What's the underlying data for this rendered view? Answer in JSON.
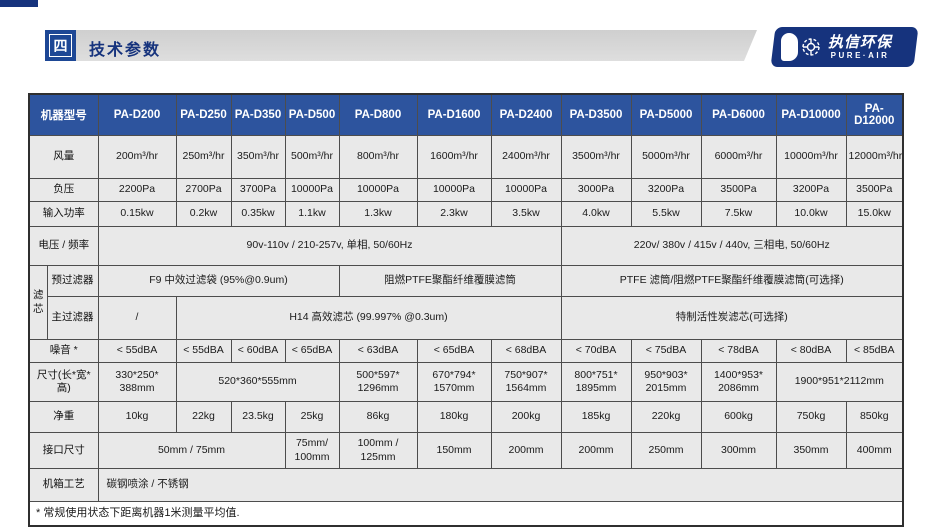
{
  "page": {
    "section_number": "四",
    "section_title": "技术参数",
    "logo": {
      "cn": "执信环保",
      "en": "PURE·AIR",
      "icon": "fan-icon"
    }
  },
  "colors": {
    "brand_navy": "#16337d",
    "section_box_blue": "#1d4795",
    "table_header_blue": "#2d549e",
    "cell_gray": "#e9e9e9",
    "bar_gray": "#d6d6d6"
  },
  "table": {
    "rows": [
      {
        "name": "row-model",
        "header": true,
        "cells": [
          {
            "t": "机器型号",
            "cs": 2
          },
          {
            "t": "PA-D200"
          },
          {
            "t": "PA-D250"
          },
          {
            "t": "PA-D350"
          },
          {
            "t": "PA-D500"
          },
          {
            "t": "PA-D800"
          },
          {
            "t": "PA-D1600"
          },
          {
            "t": "PA-D2400"
          },
          {
            "t": "PA-D3500"
          },
          {
            "t": "PA-D5000"
          },
          {
            "t": "PA-D6000"
          },
          {
            "t": "PA-D10000"
          },
          {
            "t": "PA-D12000"
          }
        ]
      },
      {
        "name": "row-airflow",
        "cells": [
          {
            "t": "风量",
            "cs": 2,
            "lbl": true
          },
          {
            "t": "200m³/hr"
          },
          {
            "t": "250m³/hr"
          },
          {
            "t": "350m³/hr"
          },
          {
            "t": "500m³/hr"
          },
          {
            "t": "800m³/hr"
          },
          {
            "t": "1600m³/hr"
          },
          {
            "t": "2400m³/hr"
          },
          {
            "t": "3500m³/hr"
          },
          {
            "t": "5000m³/hr"
          },
          {
            "t": "6000m³/hr"
          },
          {
            "t": "10000m³/hr"
          },
          {
            "t": "12000m³/hr"
          }
        ]
      },
      {
        "name": "row-negative-pressure",
        "cells": [
          {
            "t": "负压",
            "cs": 2,
            "lbl": true
          },
          {
            "t": "2200Pa"
          },
          {
            "t": "2700Pa"
          },
          {
            "t": "3700Pa"
          },
          {
            "t": "10000Pa"
          },
          {
            "t": "10000Pa"
          },
          {
            "t": "10000Pa"
          },
          {
            "t": "10000Pa"
          },
          {
            "t": "3000Pa"
          },
          {
            "t": "3200Pa"
          },
          {
            "t": "3500Pa"
          },
          {
            "t": "3200Pa"
          },
          {
            "t": "3500Pa"
          }
        ]
      },
      {
        "name": "row-input-power",
        "cells": [
          {
            "t": "输入功率",
            "cs": 2,
            "lbl": true
          },
          {
            "t": "0.15kw"
          },
          {
            "t": "0.2kw"
          },
          {
            "t": "0.35kw"
          },
          {
            "t": "1.1kw"
          },
          {
            "t": "1.3kw"
          },
          {
            "t": "2.3kw"
          },
          {
            "t": "3.5kw"
          },
          {
            "t": "4.0kw"
          },
          {
            "t": "5.5kw"
          },
          {
            "t": "7.5kw"
          },
          {
            "t": "10.0kw"
          },
          {
            "t": "15.0kw"
          }
        ]
      },
      {
        "name": "row-voltage-frequency",
        "cells": [
          {
            "t": "电压 / 频率",
            "cs": 2,
            "lbl": true
          },
          {
            "t": "90v-110v / 210-257v, 单相, 50/60Hz",
            "cs": 7
          },
          {
            "t": "220v/ 380v / 415v / 440v, 三相电, 50/60Hz",
            "cs": 5
          }
        ]
      },
      {
        "name": "row-pre-filter",
        "cells": [
          {
            "t": "滤芯",
            "rs": 2,
            "lbl": true
          },
          {
            "t": "预过滤器",
            "lbl": true
          },
          {
            "t": "F9 中效过滤袋 (95%@0.9um)",
            "cs": 4
          },
          {
            "t": "阻燃PTFE聚酯纤维覆膜滤筒",
            "cs": 3
          },
          {
            "t": "PTFE 滤筒/阻燃PTFE聚酯纤维覆膜滤筒(可选择)",
            "cs": 5
          }
        ]
      },
      {
        "name": "row-main-filter",
        "cells": [
          {
            "t": "主过滤器",
            "lbl": true
          },
          {
            "t": "/"
          },
          {
            "t": "H14 高效滤芯 (99.997% @0.3um)",
            "cs": 6
          },
          {
            "t": "特制活性炭滤芯(可选择)",
            "cs": 5
          }
        ]
      },
      {
        "name": "row-noise",
        "cells": [
          {
            "t": "噪音 *",
            "cs": 2,
            "lbl": true
          },
          {
            "t": "< 55dBA"
          },
          {
            "t": "< 55dBA"
          },
          {
            "t": "< 60dBA"
          },
          {
            "t": "< 65dBA"
          },
          {
            "t": "< 63dBA"
          },
          {
            "t": "< 65dBA"
          },
          {
            "t": "< 68dBA"
          },
          {
            "t": "< 70dBA"
          },
          {
            "t": "< 75dBA"
          },
          {
            "t": "< 78dBA"
          },
          {
            "t": "< 80dBA"
          },
          {
            "t": "< 85dBA"
          }
        ]
      },
      {
        "name": "row-dimensions",
        "cells": [
          {
            "t": "尺寸(长*宽*高)",
            "cs": 2,
            "lbl": true
          },
          {
            "t": "330*250*\n388mm"
          },
          {
            "t": "520*360*555mm",
            "cs": 3
          },
          {
            "t": "500*597*\n1296mm"
          },
          {
            "t": "670*794*\n1570mm"
          },
          {
            "t": "750*907*\n1564mm"
          },
          {
            "t": "800*751*\n1895mm"
          },
          {
            "t": "950*903*\n2015mm"
          },
          {
            "t": "1400*953*\n2086mm"
          },
          {
            "t": "1900*951*2112mm",
            "cs": 2
          }
        ]
      },
      {
        "name": "row-net-weight",
        "cells": [
          {
            "t": "净重",
            "cs": 2,
            "lbl": true
          },
          {
            "t": "10kg"
          },
          {
            "t": "22kg"
          },
          {
            "t": "23.5kg"
          },
          {
            "t": "25kg"
          },
          {
            "t": "86kg"
          },
          {
            "t": "180kg"
          },
          {
            "t": "200kg"
          },
          {
            "t": "185kg"
          },
          {
            "t": "220kg"
          },
          {
            "t": "600kg"
          },
          {
            "t": "750kg"
          },
          {
            "t": "850kg"
          }
        ]
      },
      {
        "name": "row-duct-size",
        "cells": [
          {
            "t": "接口尺寸",
            "cs": 2,
            "lbl": true
          },
          {
            "t": "50mm / 75mm",
            "cs": 3
          },
          {
            "t": "75mm/\n100mm"
          },
          {
            "t": "100mm /\n125mm"
          },
          {
            "t": "150mm"
          },
          {
            "t": "200mm"
          },
          {
            "t": "200mm"
          },
          {
            "t": "250mm"
          },
          {
            "t": "300mm"
          },
          {
            "t": "350mm"
          },
          {
            "t": "400mm"
          }
        ]
      },
      {
        "name": "row-chassis-finish",
        "cells": [
          {
            "t": "机箱工艺",
            "cs": 2,
            "lbl": true
          },
          {
            "t": "碳钢喷涂 / 不锈钢",
            "cs": 12,
            "cls": "cell-left"
          }
        ]
      },
      {
        "name": "row-footnote",
        "cells": [
          {
            "t": "* 常规使用状态下距离机器1米测量平均值.",
            "cs": 14,
            "cls": "footnote"
          }
        ]
      }
    ]
  }
}
